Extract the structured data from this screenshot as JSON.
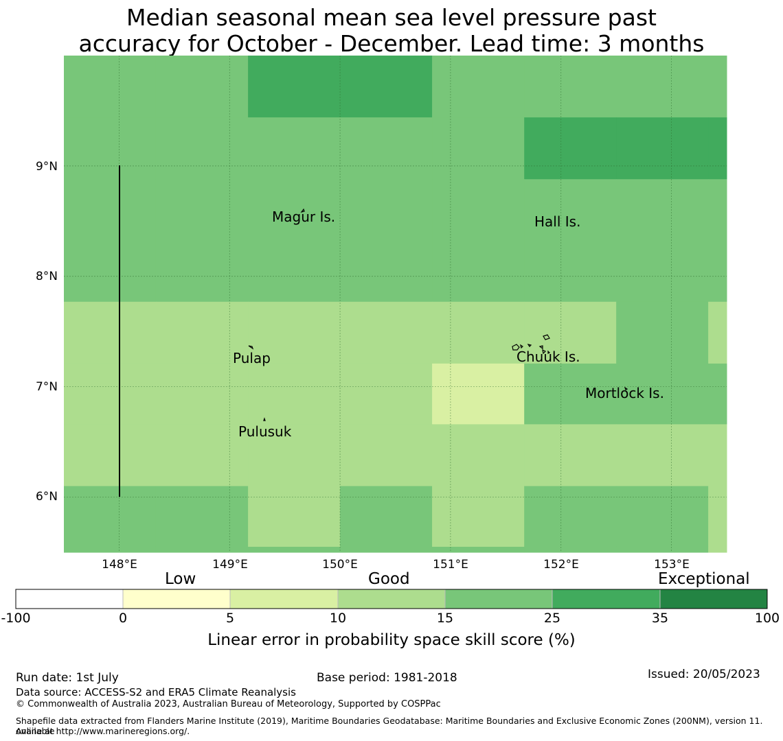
{
  "title": {
    "line1": "Median seasonal mean sea level pressure past",
    "line2": "accuracy for October - December. Lead time: 3 months"
  },
  "map": {
    "lon_range": [
      147.5,
      153.5
    ],
    "lat_range": [
      5.5,
      10.0
    ],
    "lon_ticks": [
      "148°E",
      "149°E",
      "150°E",
      "151°E",
      "152°E",
      "153°E"
    ],
    "lat_ticks": [
      "9°N",
      "8°N",
      "7°N",
      "6°N"
    ],
    "place_labels": [
      "Magur Is.",
      "Hall Is.",
      "Pulap",
      "Chuuk Is.",
      "Mortlock Is.",
      "Pulusuk"
    ],
    "gridline_color": "#2e6b2e"
  },
  "legend": {
    "categories": [
      "Low",
      "Good",
      "Exceptional"
    ],
    "bin_edges": [
      "-100",
      "0",
      "5",
      "10",
      "15",
      "25",
      "35",
      "100"
    ],
    "bin_colors": [
      "#ffffff",
      "#ffffcc",
      "#d9f0a3",
      "#addd8e",
      "#78c679",
      "#41ab5d",
      "#238443"
    ],
    "axis_label": "Linear error in probability space skill score (%)"
  },
  "skill_grid": {
    "levels": {
      "c1": "5-10",
      "c2": "10-15",
      "c3": "15-25",
      "c4": "25-35"
    },
    "rows": [
      {
        "lat_range": [
          9.44,
          10.0
        ],
        "cells": [
          "c3",
          "c3",
          "c4",
          "c4",
          "c3",
          "c3",
          "c3",
          "c3"
        ]
      },
      {
        "lat_range": [
          8.88,
          9.44
        ],
        "cells": [
          "c3",
          "c3",
          "c3",
          "c3",
          "c3",
          "c4",
          "c4",
          "c4"
        ]
      },
      {
        "lat_range": [
          7.77,
          8.88
        ],
        "cells": [
          "c3",
          "c3",
          "c3",
          "c3",
          "c3",
          "c3",
          "c3",
          "c3"
        ]
      },
      {
        "lat_range": [
          7.21,
          7.77
        ],
        "cells": [
          "c2",
          "c2",
          "c2",
          "c2",
          "c2",
          "c2",
          "c3",
          "c2"
        ]
      },
      {
        "lat_range": [
          6.66,
          7.21
        ],
        "cells": [
          "c2",
          "c2",
          "c2",
          "c2",
          "c1",
          "c3",
          "c3",
          "c3"
        ]
      },
      {
        "lat_range": [
          6.1,
          6.66
        ],
        "cells": [
          "c2",
          "c2",
          "c2",
          "c2",
          "c2",
          "c2",
          "c2",
          "c2"
        ]
      },
      {
        "lat_range": [
          5.55,
          6.1
        ],
        "cells": [
          "c3",
          "c3",
          "c2",
          "c3",
          "c2",
          "c3",
          "c3",
          "c2"
        ]
      },
      {
        "lat_range": [
          5.5,
          5.55
        ],
        "cells": [
          "c3",
          "c3",
          "c3",
          "c3",
          "c3",
          "c3",
          "c3",
          "c2"
        ]
      }
    ]
  },
  "footer": {
    "run_date": "Run date: 1st July",
    "base_period": "Base period: 1981-2018",
    "issued": "Issued: 20/05/2023",
    "data_source": "Data source: ACCESS-S2 and ERA5 Climate Reanalysis",
    "copyright": "© Commonwealth of Australia 2023, Australian Bureau of Meteorology, Supported by COSPPac",
    "shapefile_line1": "Shapefile data extracted from Flanders Marine Institute (2019), Maritime Boundaries Geodatabase: Maritime Boundaries and Exclusive Economic Zones (200NM), version 11. Available",
    "shapefile_line2": "online at http://www.marineregions.org/."
  }
}
